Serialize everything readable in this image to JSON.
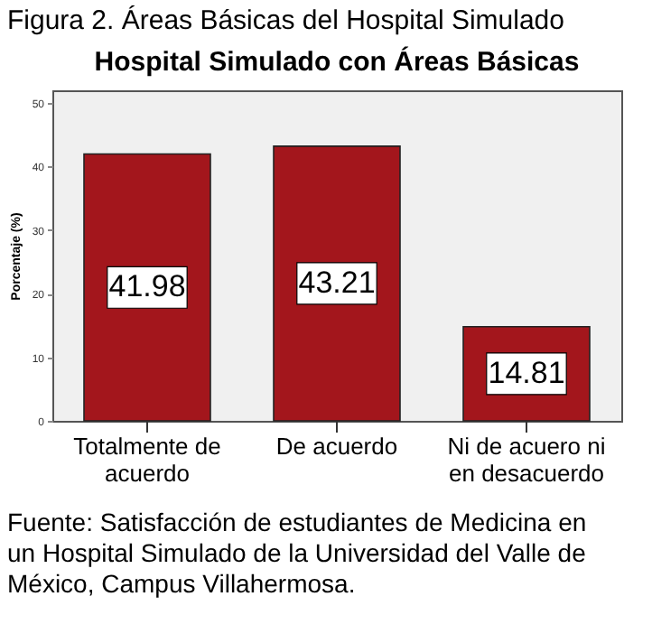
{
  "chart_data": {
    "type": "bar",
    "title": "Hospital Simulado con Áreas Básicas",
    "ylabel": "Porcentaje (%)",
    "categories": [
      "Totalmente de acuerdo",
      "De acuerdo",
      "Ni de acuero ni en desacuerdo"
    ],
    "values": [
      41.98,
      43.21,
      14.81
    ],
    "color": "#a3161c",
    "ylim": [
      0,
      52
    ],
    "yticks": [
      0,
      10,
      20,
      30,
      40,
      50
    ],
    "grid": false,
    "data_labels": true,
    "annotations": [
      "Figura 2. Áreas Básicas del Hospital Simulado",
      "Fuente: Satisfacción de estudiantes de Medicina en un Hospital Simulado de la Universidad del Valle de México, Campus Villahermosa."
    ]
  }
}
